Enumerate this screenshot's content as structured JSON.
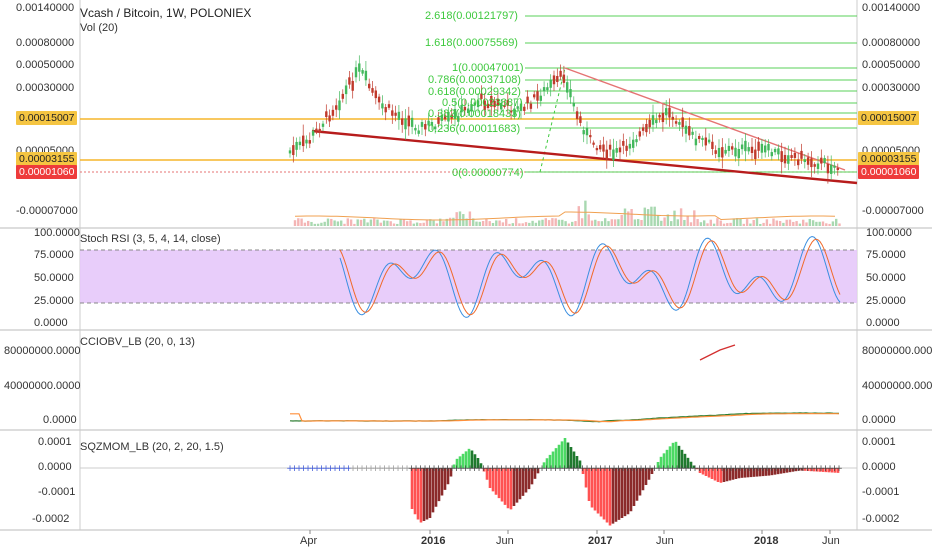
{
  "header": {
    "title": "Vcash / Bitcoin, 1W, POLONIEX",
    "vol": "Vol (20)"
  },
  "colors": {
    "accent_orange": "#f5b52b",
    "red_tag": "#ee3b3b",
    "fib_green": "#3ec93e",
    "rsi_band": "#e6c8fa",
    "up": "#43b85c",
    "down": "#c0392b"
  },
  "x_axis": [
    "Apr",
    "2016",
    "Jun",
    "2017",
    "Jun",
    "2018",
    "Jun"
  ],
  "main_left_ticks": [
    "0.00140000",
    "0.00080000",
    "0.00050000",
    "0.00030000",
    "0.00005000",
    "-0.00007000"
  ],
  "main_right_ticks": [
    "0.00140000",
    "0.00080000",
    "0.00050000",
    "0.00030000",
    "0.00005000",
    "-0.00007000"
  ],
  "price_tags": {
    "left_orange": "0.00015007",
    "left_orange2": "0.00003155",
    "left_red": "0.00001060",
    "right_orange": "0.00015007",
    "right_orange2": "0.00003155",
    "right_red": "0.00001060"
  },
  "fib_levels": [
    "2.618(0.00121797)",
    "1.618(0.00075569)",
    "1(0.00047001)",
    "0.786(0.00037108)",
    "0.618(0.00029342)",
    "0.5(0.00023887)",
    "0.382(0.00018433)",
    "0.236(0.00011683)",
    "0(0.00000774)"
  ],
  "panels": {
    "rsi": {
      "title": "Stoch RSI (3, 5, 4, 14, close)",
      "ticks": [
        "100.0000",
        "75.0000",
        "50.0000",
        "25.0000",
        "0.0000"
      ]
    },
    "cci": {
      "title": "CCIOBV_LB (20, 0, 13)",
      "left_ticks": [
        "80000000.0000",
        "40000000.0000",
        "0.0000"
      ],
      "right_ticks": [
        "80000000.0000",
        "40000000.0000",
        "0.0000"
      ]
    },
    "sqz": {
      "title": "SQZMOM_LB (20, 2, 20, 1.5)",
      "ticks": [
        "0.0001",
        "0.0000",
        "-0.0001",
        "-0.0002"
      ]
    }
  },
  "chart_data": [
    {
      "type": "candlestick",
      "title": "Vcash / Bitcoin, 1W, POLONIEX",
      "x": [
        "Apr",
        "2016",
        "Jun",
        "2017",
        "Jun",
        "2018",
        "Jun"
      ],
      "fib_retracement": [
        {
          "ratio": 2.618,
          "price": 0.00121797
        },
        {
          "ratio": 1.618,
          "price": 0.00075569
        },
        {
          "ratio": 1,
          "price": 0.00047001
        },
        {
          "ratio": 0.786,
          "price": 0.00037108
        },
        {
          "ratio": 0.618,
          "price": 0.00029342
        },
        {
          "ratio": 0.5,
          "price": 0.00023887
        },
        {
          "ratio": 0.382,
          "price": 0.00018433
        },
        {
          "ratio": 0.236,
          "price": 0.00011683
        },
        {
          "ratio": 0,
          "price": 7.74e-06
        }
      ],
      "horizontal_levels": [
        0.00015007,
        3.155e-05,
        1.06e-05
      ],
      "scale": "log"
    },
    {
      "type": "line",
      "title": "Stoch RSI (3, 5, 4, 14, close)",
      "ylim": [
        0,
        100
      ],
      "bands": [
        20,
        80
      ]
    },
    {
      "type": "line",
      "title": "CCIOBV_LB (20, 0, 13)",
      "ylim": [
        0,
        90000000
      ]
    },
    {
      "type": "bar",
      "title": "SQZMOM_LB (20, 2, 20, 1.5)",
      "ylim": [
        -0.00022,
        0.00011
      ]
    }
  ]
}
